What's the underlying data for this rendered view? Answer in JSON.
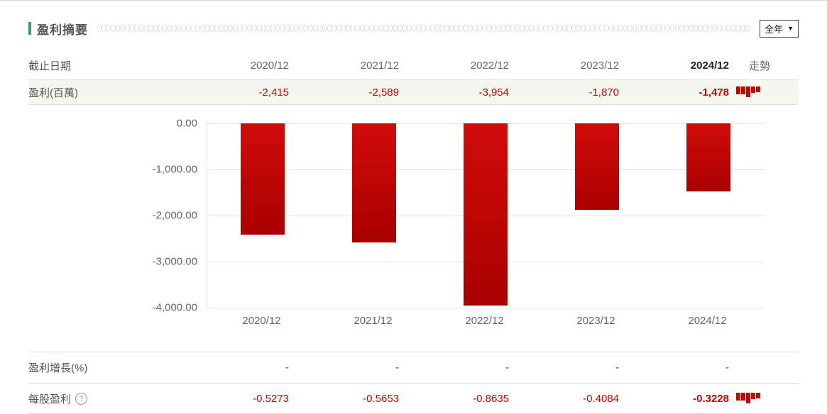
{
  "header": {
    "title": "盈利摘要",
    "period_selected": "全年"
  },
  "table": {
    "date_header": "截止日期",
    "trend_header": "走勢",
    "periods": [
      "2020/12",
      "2021/12",
      "2022/12",
      "2023/12",
      "2024/12"
    ],
    "rows": [
      {
        "label": "盈利(百萬)",
        "values": [
          "-2,415",
          "-2,589",
          "-3,954",
          "-1,870",
          "-1,478"
        ],
        "style": "red",
        "bold_last": true,
        "sparkline": true
      },
      {
        "label": "盈利增長(%)",
        "values": [
          "-",
          "-",
          "-",
          "-",
          "-"
        ],
        "style": "dash",
        "bold_last": false,
        "sparkline": false
      },
      {
        "label": "每股盈利",
        "values": [
          "-0.5273",
          "-0.5653",
          "-0.8635",
          "-0.4084",
          "-0.3228"
        ],
        "style": "red",
        "bold_last": true,
        "sparkline": true,
        "help_icon": true
      }
    ]
  },
  "chart_data": {
    "type": "bar",
    "categories": [
      "2020/12",
      "2021/12",
      "2022/12",
      "2023/12",
      "2024/12"
    ],
    "values": [
      -2415,
      -2589,
      -3954,
      -1870,
      -1478
    ],
    "title": "",
    "xlabel": "",
    "ylabel": "",
    "ylim": [
      -4000,
      0
    ],
    "yticks": [
      "0.00",
      "-1,000.00",
      "-2,000.00",
      "-3,000.00",
      "-4,000.00"
    ],
    "grid": true,
    "legend": false,
    "bar_color": "#cc0000"
  },
  "colors": {
    "accent_green": "#3f9e57",
    "value_red": "#cc0000",
    "row_highlight_bg": "#f6f6f0"
  }
}
